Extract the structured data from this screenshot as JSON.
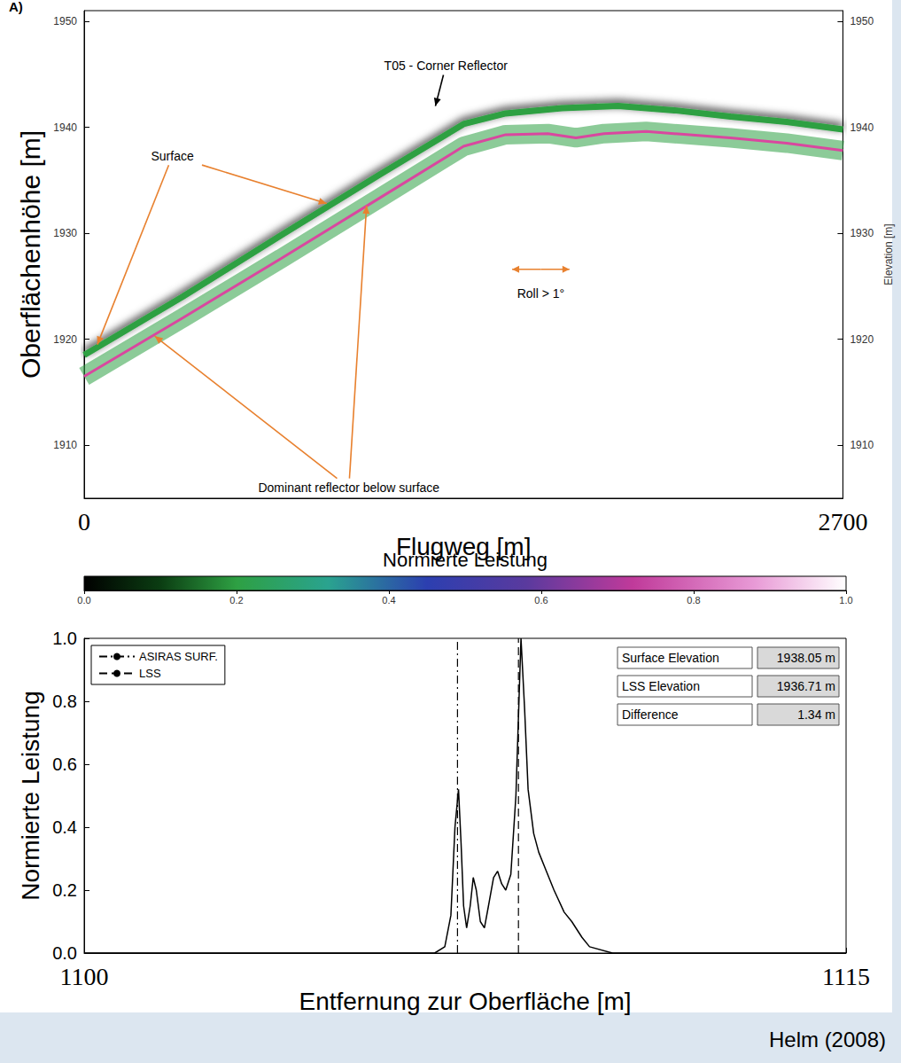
{
  "chart_data": [
    {
      "type": "line",
      "panel": "A)",
      "xlabel": "Flugweg [m]",
      "ylabel": "Oberflächenhöhe [m]",
      "y2label": "Elevation [m]",
      "xlim": [
        0,
        2700
      ],
      "xticks": [
        0,
        2700
      ],
      "ylim": [
        1905,
        1951
      ],
      "yticks": [
        1910,
        1920,
        1930,
        1940,
        1950
      ],
      "y2lim": [
        1905,
        1951
      ],
      "y2ticks": [
        1910,
        1920,
        1930,
        1940,
        1950
      ],
      "grid": false,
      "legend": false,
      "series": [
        {
          "name": "Surface",
          "color": "#2ea043",
          "x": [
            0,
            350,
            700,
            1050,
            1350,
            1500,
            1700,
            1900,
            2100,
            2300,
            2500,
            2700
          ],
          "values": [
            1918.5,
            1924,
            1929.8,
            1935.5,
            1940.3,
            1941.3,
            1941.8,
            1942,
            1941.6,
            1941,
            1940.5,
            1939.8
          ],
          "targets": [
            [
              47,
              1919.5
            ],
            [
              863,
              1932.8
            ]
          ],
          "label_at": [
            314,
            1937.3
          ]
        },
        {
          "name": "Dominant reflector below surface",
          "color": "#d9479f",
          "x": [
            0,
            350,
            700,
            1050,
            1350,
            1500,
            1650,
            1750,
            1850,
            2000,
            2300,
            2500,
            2700
          ],
          "values": [
            1916.5,
            1922,
            1927.6,
            1933.3,
            1938.2,
            1939.3,
            1939.4,
            1939,
            1939.4,
            1939.6,
            1939,
            1938.5,
            1937.8
          ],
          "targets": [
            [
              251,
              1920.3
            ],
            [
              1005,
              1932.6
            ]
          ],
          "label_at": [
            942,
            1906
          ]
        }
      ],
      "annotations": [
        {
          "text": "T05 - Corner Reflector",
          "x": 1287,
          "y": 1945.8,
          "target": [
            1250,
            1942
          ]
        },
        {
          "text": "Roll > 1°",
          "x": 1625,
          "y": 1924.3,
          "span": [
            1523,
            1727
          ],
          "span_y": 1926.6
        }
      ],
      "colorbar": {
        "label": "Normierte Leistung",
        "range": [
          0,
          1
        ],
        "ticks": [
          {
            "value": 0,
            "label": "0.0"
          },
          {
            "value": 0.2,
            "label": "0.2"
          },
          {
            "value": 0.4,
            "label": "0.4"
          },
          {
            "value": 0.6,
            "label": "0.6"
          },
          {
            "value": 0.8,
            "label": "0.8"
          },
          {
            "value": 1,
            "label": "1.0"
          }
        ]
      }
    },
    {
      "type": "line",
      "xlabel": "Entfernung zur Oberfläche [m]",
      "ylabel": "Normierte Leistung",
      "xlim": [
        1100,
        1115
      ],
      "xticks": [
        1100,
        1115
      ],
      "ylim": [
        0,
        1
      ],
      "yticks": [
        {
          "value": 0,
          "label": "0.0"
        },
        {
          "value": 0.2,
          "label": "0.2"
        },
        {
          "value": 0.4,
          "label": "0.4"
        },
        {
          "value": 0.6,
          "label": "0.6"
        },
        {
          "value": 0.8,
          "label": "0.8"
        },
        {
          "value": 1,
          "label": "1.0"
        }
      ],
      "grid": false,
      "legend": "upper left",
      "color": "#000000",
      "x": [
        1100,
        1106.9,
        1107.1,
        1107.22,
        1107.3,
        1107.37,
        1107.42,
        1107.47,
        1107.53,
        1107.6,
        1107.66,
        1107.72,
        1107.8,
        1107.88,
        1107.96,
        1108.06,
        1108.14,
        1108.22,
        1108.3,
        1108.4,
        1108.5,
        1108.6,
        1108.67,
        1108.74,
        1108.85,
        1108.95,
        1109.1,
        1109.25,
        1109.45,
        1109.6,
        1109.8,
        1109.95,
        1110.4,
        1115
      ],
      "values": [
        0,
        0,
        0.02,
        0.12,
        0.4,
        0.52,
        0.35,
        0.15,
        0.08,
        0.15,
        0.24,
        0.2,
        0.1,
        0.08,
        0.15,
        0.24,
        0.26,
        0.22,
        0.2,
        0.25,
        0.5,
        1.0,
        0.78,
        0.52,
        0.38,
        0.32,
        0.26,
        0.2,
        0.13,
        0.1,
        0.05,
        0.02,
        0,
        0
      ],
      "vlines": [
        {
          "name": "ASIRAS SURF.",
          "x": 1107.35,
          "line_style": "dashdot",
          "color": "#000000"
        },
        {
          "name": "LSS",
          "x": 1108.55,
          "line_style": "dashed",
          "color": "#000000"
        }
      ],
      "info_box": [
        {
          "label": "Surface Elevation",
          "value": "1938.05 m"
        },
        {
          "label": "LSS Elevation",
          "value": "1936.71 m"
        },
        {
          "label": "Difference",
          "value": "1.34 m"
        }
      ]
    }
  ],
  "source": "Helm (2008)"
}
